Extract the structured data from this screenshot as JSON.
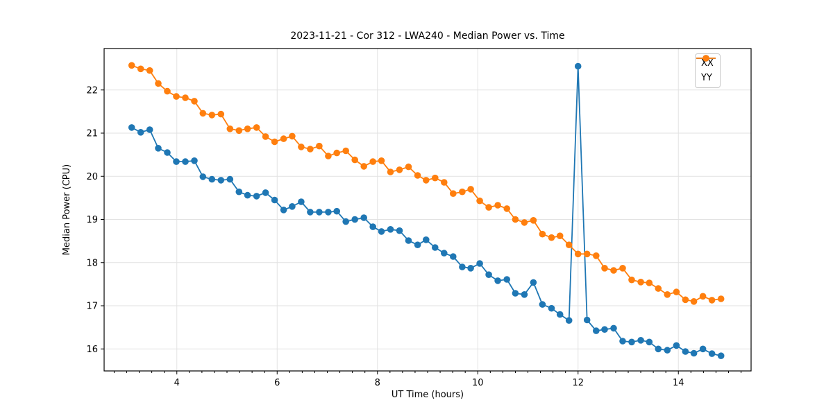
{
  "figure": {
    "title": "2023-11-21 - Cor 312 - LWA240 - Median Power vs. Time",
    "background_color": "#ffffff",
    "plot_border_color": "#000000",
    "grid_color": "#e2e2e2"
  },
  "legend": {
    "position": "upper right",
    "items": [
      {
        "label": "XX",
        "color": "#1f77b4"
      },
      {
        "label": "YY",
        "color": "#ff7f0e"
      }
    ]
  },
  "chart_data": {
    "type": "line",
    "title": "2023-11-21 - Cor 312 - LWA240 - Median Power vs. Time",
    "xlabel": "UT Time (hours)",
    "ylabel": "Median Power (CPU)",
    "xlim": [
      2.55,
      15.45
    ],
    "ylim": [
      15.49,
      22.96
    ],
    "xticks": [
      4,
      6,
      8,
      10,
      12,
      14
    ],
    "yticks": [
      16,
      17,
      18,
      19,
      20,
      21,
      22
    ],
    "minor_xtick_step": 0.25,
    "grid": true,
    "legend_position": "upper right",
    "marker": "circle",
    "x": [
      3.1,
      3.28,
      3.46,
      3.63,
      3.81,
      3.99,
      4.17,
      4.35,
      4.52,
      4.7,
      4.88,
      5.06,
      5.24,
      5.41,
      5.59,
      5.77,
      5.95,
      6.13,
      6.3,
      6.48,
      6.66,
      6.84,
      7.02,
      7.19,
      7.37,
      7.55,
      7.73,
      7.91,
      8.08,
      8.26,
      8.44,
      8.62,
      8.8,
      8.97,
      9.15,
      9.33,
      9.51,
      9.69,
      9.86,
      10.04,
      10.22,
      10.4,
      10.58,
      10.75,
      10.93,
      11.11,
      11.29,
      11.47,
      11.64,
      11.82,
      12.0,
      12.18,
      12.36,
      12.53,
      12.71,
      12.89,
      13.07,
      13.25,
      13.42,
      13.6,
      13.78,
      13.96,
      14.14,
      14.31,
      14.49,
      14.67,
      14.85
    ],
    "series": [
      {
        "name": "XX",
        "color": "#1f77b4",
        "values": [
          21.13,
          21.02,
          21.08,
          20.65,
          20.55,
          20.34,
          20.34,
          20.36,
          19.99,
          19.93,
          19.91,
          19.93,
          19.64,
          19.56,
          19.54,
          19.62,
          19.45,
          19.22,
          19.3,
          19.41,
          19.17,
          19.17,
          19.17,
          19.19,
          18.95,
          19.0,
          19.04,
          18.83,
          18.72,
          18.77,
          18.74,
          18.51,
          18.41,
          18.53,
          18.35,
          18.22,
          18.14,
          17.9,
          17.87,
          17.98,
          17.72,
          17.58,
          17.61,
          17.29,
          17.26,
          17.54,
          17.03,
          16.94,
          16.8,
          16.66,
          22.55,
          16.67,
          16.42,
          16.45,
          16.48,
          16.18,
          16.16,
          16.2,
          16.16,
          16.0,
          15.97,
          16.08,
          15.94,
          15.9,
          16.0,
          15.89,
          15.84
        ]
      },
      {
        "name": "YY",
        "color": "#ff7f0e",
        "values": [
          22.57,
          22.49,
          22.45,
          22.15,
          21.97,
          21.85,
          21.82,
          21.74,
          21.46,
          21.42,
          21.44,
          21.1,
          21.06,
          21.1,
          21.13,
          20.92,
          20.8,
          20.87,
          20.93,
          20.68,
          20.63,
          20.7,
          20.47,
          20.54,
          20.59,
          20.38,
          20.23,
          20.34,
          20.36,
          20.1,
          20.15,
          20.22,
          20.02,
          19.91,
          19.96,
          19.86,
          19.6,
          19.64,
          19.7,
          19.43,
          19.28,
          19.33,
          19.25,
          19.0,
          18.93,
          18.98,
          18.66,
          18.58,
          18.62,
          18.41,
          18.2,
          18.2,
          18.16,
          17.87,
          17.82,
          17.87,
          17.6,
          17.55,
          17.53,
          17.4,
          17.26,
          17.32,
          17.14,
          17.1,
          17.22,
          17.13,
          17.16
        ]
      }
    ],
    "annotations": [
      "XX spike to 22.55 at x = 12.00"
    ]
  }
}
